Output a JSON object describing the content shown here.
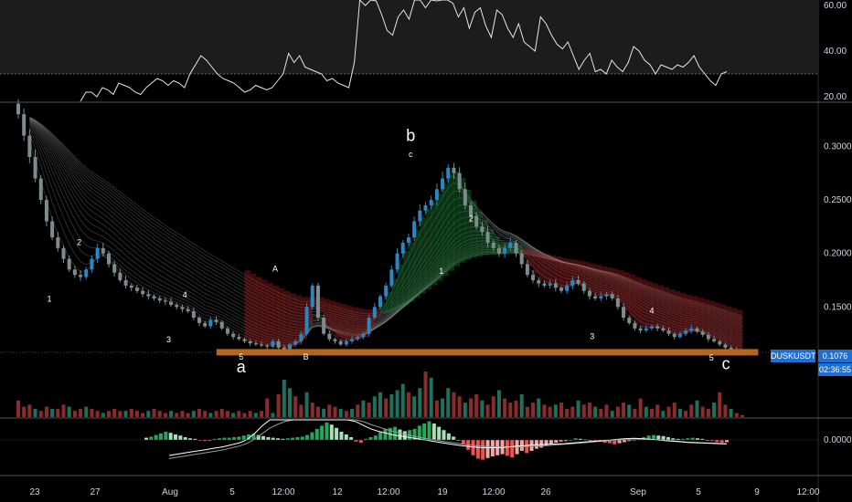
{
  "symbol": "DUSKUSDT",
  "price_tag": "0.1076",
  "countdown": "02:36:55",
  "colors": {
    "up": "#2e86c1",
    "down": "#7f8c8d",
    "vol_up": "#1f6f5c",
    "vol_down": "#8b2c2c",
    "support": "#b5651d",
    "price_tag": "#1e6fd0"
  },
  "chart_data": [
    {
      "type": "line",
      "name": "rsi-panel",
      "y_ticks": [
        "60.00",
        "40.00",
        "20.00"
      ],
      "ylim": [
        20,
        60
      ],
      "values": [
        18,
        22,
        22,
        20,
        24,
        23,
        21,
        26,
        25,
        24,
        22,
        21,
        24,
        26,
        28,
        27,
        25,
        27,
        26,
        24,
        30,
        34,
        38,
        36,
        33,
        30,
        28,
        27,
        26,
        24,
        22,
        23,
        25,
        24,
        23,
        24,
        27,
        30,
        39,
        35,
        38,
        33,
        32,
        31,
        30,
        27,
        28,
        26,
        25,
        24,
        35,
        66,
        60,
        65,
        62,
        56,
        49,
        47,
        55,
        58,
        54,
        63,
        67,
        59,
        66,
        62,
        68,
        66,
        61,
        55,
        59,
        50,
        57,
        59,
        51,
        46,
        58,
        56,
        50,
        46,
        52,
        44,
        42,
        40,
        55,
        52,
        47,
        43,
        41,
        44,
        38,
        32,
        36,
        39,
        31,
        32,
        30,
        36,
        33,
        31,
        35,
        42,
        40,
        36,
        34,
        30,
        34,
        33,
        32,
        34,
        33,
        35,
        38,
        33,
        30,
        27,
        25,
        30,
        31
      ],
      "overbought": 30
    },
    {
      "type": "candlestick",
      "name": "price-panel",
      "y_ticks": [
        "0.3000",
        "0.2500",
        "0.2000",
        "0.1500"
      ],
      "ylim": [
        0.0915,
        0.3395
      ],
      "x_ticks": [
        "23",
        "27",
        "Aug",
        "5",
        "12:00",
        "12",
        "12:00",
        "19",
        "12:00",
        "26",
        "Sep",
        "5",
        "9",
        "12:00"
      ],
      "close": [
        0.33,
        0.31,
        0.29,
        0.27,
        0.25,
        0.23,
        0.215,
        0.205,
        0.195,
        0.185,
        0.18,
        0.178,
        0.185,
        0.195,
        0.205,
        0.2,
        0.19,
        0.182,
        0.175,
        0.17,
        0.168,
        0.165,
        0.162,
        0.16,
        0.158,
        0.156,
        0.155,
        0.152,
        0.15,
        0.148,
        0.146,
        0.14,
        0.135,
        0.132,
        0.138,
        0.136,
        0.13,
        0.125,
        0.122,
        0.12,
        0.118,
        0.116,
        0.115,
        0.114,
        0.113,
        0.118,
        0.112,
        0.11,
        0.115,
        0.118,
        0.125,
        0.15,
        0.17,
        0.14,
        0.125,
        0.12,
        0.118,
        0.115,
        0.118,
        0.12,
        0.122,
        0.125,
        0.14,
        0.15,
        0.16,
        0.17,
        0.185,
        0.2,
        0.21,
        0.215,
        0.23,
        0.24,
        0.245,
        0.25,
        0.26,
        0.27,
        0.28,
        0.275,
        0.26,
        0.245,
        0.235,
        0.225,
        0.22,
        0.21,
        0.205,
        0.2,
        0.205,
        0.21,
        0.2,
        0.19,
        0.18,
        0.175,
        0.172,
        0.17,
        0.172,
        0.168,
        0.165,
        0.17,
        0.175,
        0.172,
        0.165,
        0.16,
        0.158,
        0.16,
        0.162,
        0.158,
        0.15,
        0.14,
        0.135,
        0.13,
        0.128,
        0.13,
        0.132,
        0.13,
        0.128,
        0.125,
        0.122,
        0.125,
        0.128,
        0.13,
        0.127,
        0.124,
        0.12,
        0.118,
        0.115,
        0.112,
        0.11,
        0.108,
        0.1076
      ],
      "support_level": 0.1082,
      "support_range_x": [
        0.254,
        0.89
      ]
    },
    {
      "type": "bar",
      "name": "volume-panel",
      "values": [
        8,
        5,
        6,
        4,
        3,
        5,
        4,
        4,
        6,
        5,
        3,
        4,
        5,
        4,
        3,
        2,
        3,
        4,
        3,
        3,
        4,
        3,
        2,
        3,
        4,
        3,
        2,
        3,
        2,
        3,
        2,
        3,
        4,
        3,
        2,
        3,
        4,
        3,
        2,
        3,
        2,
        3,
        2,
        3,
        9,
        2,
        11,
        18,
        14,
        10,
        6,
        12,
        7,
        5,
        4,
        6,
        5,
        4,
        3,
        4,
        6,
        8,
        7,
        10,
        12,
        9,
        11,
        13,
        16,
        12,
        10,
        14,
        22,
        19,
        8,
        9,
        14,
        12,
        10,
        7,
        9,
        11,
        8,
        6,
        10,
        13,
        9,
        7,
        8,
        11,
        5,
        7,
        9,
        6,
        5,
        6,
        7,
        4,
        5,
        8,
        6,
        7,
        5,
        4,
        6,
        3,
        5,
        7,
        6,
        4,
        9,
        5,
        4,
        6,
        3,
        5,
        7,
        4,
        3,
        6,
        8,
        5,
        4,
        7,
        12,
        6,
        4,
        2,
        1
      ],
      "up_flags": [
        0,
        0,
        0,
        1,
        0,
        0,
        1,
        0,
        0,
        1,
        0,
        0,
        1,
        0,
        0,
        1,
        0,
        0,
        0,
        1,
        0,
        0,
        0,
        1,
        0,
        0,
        0,
        1,
        0,
        0,
        0,
        1,
        0,
        0,
        1,
        0,
        0,
        0,
        1,
        0,
        0,
        0,
        1,
        0,
        0,
        1,
        0,
        1,
        1,
        0,
        0,
        1,
        0,
        0,
        1,
        0,
        0,
        1,
        0,
        1,
        0,
        1,
        0,
        1,
        1,
        0,
        1,
        1,
        1,
        0,
        1,
        1,
        0,
        1,
        0,
        1,
        1,
        0,
        0,
        1,
        0,
        0,
        1,
        0,
        0,
        1,
        0,
        0,
        0,
        1,
        0,
        0,
        1,
        0,
        0,
        1,
        0,
        0,
        0,
        1,
        0,
        0,
        1,
        0,
        0,
        1,
        0,
        0,
        1,
        0,
        0,
        1,
        0,
        0,
        1,
        0,
        0,
        1,
        0,
        0,
        1,
        0,
        0,
        1,
        0,
        0,
        1,
        0,
        0
      ]
    },
    {
      "type": "bar",
      "name": "macd-panel",
      "y_ticks": [
        "0.0000"
      ],
      "histogram": [
        0.4,
        0.6,
        0.9,
        1.2,
        1.5,
        1.3,
        1.0,
        0.8,
        0.5,
        0.3,
        0.2,
        -0.1,
        -0.2,
        -0.1,
        0.2,
        0.3,
        0.4,
        0.4,
        0.5,
        0.6,
        0.8,
        1.0,
        1.1,
        0.9,
        0.7,
        0.5,
        0.4,
        0.3,
        0.2,
        0.3,
        0.4,
        0.5,
        0.6,
        0.9,
        1.4,
        2.0,
        2.6,
        3.2,
        2.8,
        2.2,
        1.5,
        1.0,
        0.5,
        -0.3,
        -0.5,
        0.2,
        0.5,
        0.8,
        1.4,
        2.0,
        2.2,
        2.4,
        1.9,
        1.6,
        1.8,
        2.0,
        2.6,
        3.0,
        3.4,
        3.0,
        2.4,
        1.8,
        1.2,
        0.6,
        0.0,
        -0.8,
        -1.8,
        -2.8,
        -3.4,
        -3.6,
        -3.3,
        -3.0,
        -2.8,
        -2.6,
        -2.9,
        -3.2,
        -2.6,
        -2.0,
        -2.4,
        -2.0,
        -1.6,
        -1.4,
        -1.0,
        -0.8,
        -0.5,
        -0.3,
        -0.2,
        0.0,
        0.3,
        0.2,
        0.1,
        0.0,
        -0.2,
        -0.3,
        -0.5,
        -0.6,
        -0.8,
        -0.6,
        -0.4,
        -0.2,
        0.0,
        0.3,
        0.5,
        0.8,
        0.9,
        0.8,
        0.7,
        0.5,
        0.3,
        0.2,
        0.2,
        0.3,
        0.4,
        0.3,
        0.2,
        0.0,
        -0.2,
        -0.4,
        -0.5,
        -0.4
      ],
      "macd_line": [
        -5,
        -4.6,
        -4.2,
        -3.8,
        -3.4,
        -3.0,
        -2.6,
        -2.2,
        -1.6,
        -1.0,
        0.0,
        2.0,
        4.5,
        6.5,
        7.5,
        8.0,
        8.5,
        9.0,
        9.6,
        10.0,
        10.2,
        9.6,
        8.6,
        7.4,
        6.0,
        4.8,
        3.6,
        2.8,
        2.2,
        1.6,
        1.2,
        0.8,
        0.4,
        0.0,
        -0.4,
        -0.8,
        -1.2,
        -1.6,
        -1.9,
        -2.2,
        -2.4,
        -2.5,
        -2.5,
        -2.4,
        -2.2,
        -2.0,
        -1.8,
        -1.6,
        -1.5,
        -1.4,
        -1.3,
        -1.2,
        -1.0,
        -0.8,
        -0.6,
        -0.4,
        -0.2,
        0.0,
        0.2,
        0.4,
        0.5,
        0.4,
        0.2,
        0.0,
        -0.2,
        -0.4,
        -0.6,
        -0.8,
        -0.9,
        -1.0,
        -1.1,
        -1.2,
        -1.3
      ],
      "signal_line": [
        -6,
        -5.6,
        -5.2,
        -4.8,
        -4.4,
        -4.0,
        -3.6,
        -3.2,
        -2.6,
        -2.0,
        -1.2,
        0.2,
        2.0,
        3.8,
        5.0,
        6.0,
        7.0,
        7.8,
        8.4,
        8.9,
        9.2,
        9.0,
        8.5,
        7.8,
        6.9,
        6.0,
        5.0,
        4.2,
        3.4,
        2.7,
        2.0,
        1.5,
        1.0,
        0.5,
        0.1,
        -0.3,
        -0.7,
        -1.0,
        -1.4,
        -1.7,
        -1.9,
        -2.1,
        -2.2,
        -2.3,
        -2.3,
        -2.2,
        -2.1,
        -2.0,
        -1.9,
        -1.8,
        -1.6,
        -1.4,
        -1.2,
        -1.0,
        -0.8,
        -0.6,
        -0.4,
        -0.2,
        0.0,
        0.2,
        0.3,
        0.3,
        0.2,
        0.1,
        -0.1,
        -0.3,
        -0.5,
        -0.7,
        -0.8,
        -0.9,
        -1.0,
        -1.1,
        -1.2
      ]
    }
  ],
  "wave_labels": {
    "small": [
      {
        "text": "1",
        "x": 0.058,
        "price": 0.155
      },
      {
        "text": "2",
        "x": 0.093,
        "price": 0.208
      },
      {
        "text": "3",
        "x": 0.198,
        "price": 0.117
      },
      {
        "text": "4",
        "x": 0.217,
        "price": 0.159
      },
      {
        "text": "5",
        "x": 0.283,
        "price": 0.101
      },
      {
        "text": "A",
        "x": 0.323,
        "price": 0.183
      },
      {
        "text": "B",
        "x": 0.359,
        "price": 0.101
      },
      {
        "text": "c",
        "x": 0.482,
        "price": 0.29
      },
      {
        "text": "1",
        "x": 0.518,
        "price": 0.181
      },
      {
        "text": "2",
        "x": 0.553,
        "price": 0.23
      },
      {
        "text": "3",
        "x": 0.695,
        "price": 0.12
      },
      {
        "text": "4",
        "x": 0.765,
        "price": 0.144
      },
      {
        "text": "5",
        "x": 0.835,
        "price": 0.1
      }
    ],
    "big": [
      {
        "text": "b",
        "x": 0.482,
        "price": 0.305
      },
      {
        "text": "a",
        "x": 0.283,
        "price": 0.089
      },
      {
        "text": "c",
        "x": 0.852,
        "price": 0.092
      }
    ]
  }
}
